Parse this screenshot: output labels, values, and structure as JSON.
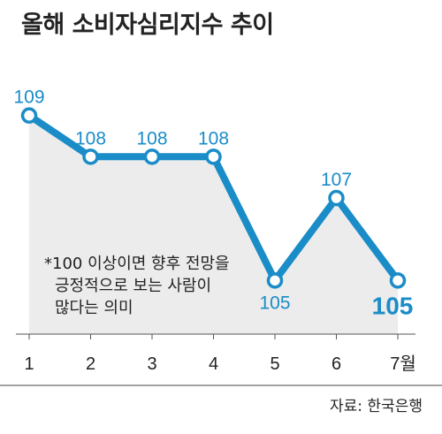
{
  "chart_data": {
    "type": "line",
    "title": "올해 소비자심리지수 추이",
    "categories": [
      "1",
      "2",
      "3",
      "4",
      "5",
      "6",
      "7월"
    ],
    "values": [
      109,
      108,
      108,
      108,
      105,
      107,
      105
    ],
    "ylim": [
      103.7,
      110.3
    ],
    "grid": false,
    "annotation": [
      "*100 이상이면 향후 전망을",
      "긍정적으로 보는 사람이",
      "많다는 의미"
    ],
    "source": "자료: 한국은행",
    "colors": {
      "line": "#1a8cc8",
      "area": "#ececec",
      "marker_fill": "#ffffff",
      "text": "#222222"
    }
  }
}
